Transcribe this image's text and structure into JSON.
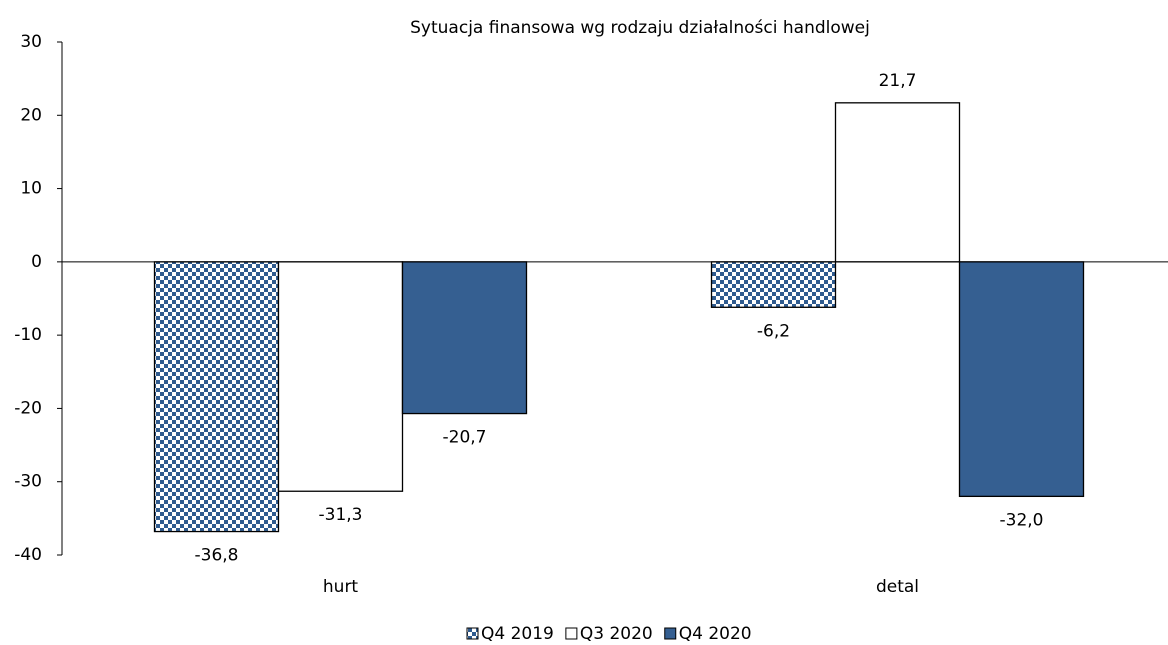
{
  "chart_data": {
    "type": "bar",
    "title": "Sytuacja finansowa wg rodzaju działalności handlowej",
    "categories": [
      "hurt",
      "detal"
    ],
    "series": [
      {
        "name": "Q4 2019",
        "color": "#2f5b8f",
        "pattern": "checker",
        "values": [
          -36.8,
          -6.2
        ],
        "value_labels": [
          "-36,8",
          "-6,2"
        ]
      },
      {
        "name": "Q3 2020",
        "color": "#ffffff",
        "values": [
          -31.3,
          21.7
        ],
        "value_labels": [
          "-31,3",
          "21,7"
        ]
      },
      {
        "name": "Q4 2020",
        "color": "#355f91",
        "values": [
          -20.7,
          -32.0
        ],
        "value_labels": [
          "-20,7",
          "-32,0"
        ]
      }
    ],
    "ylim": [
      -40,
      30
    ],
    "yticks": [
      -40,
      -30,
      -20,
      -10,
      0,
      10,
      20,
      30
    ],
    "grid": false,
    "legend": "bottom"
  }
}
